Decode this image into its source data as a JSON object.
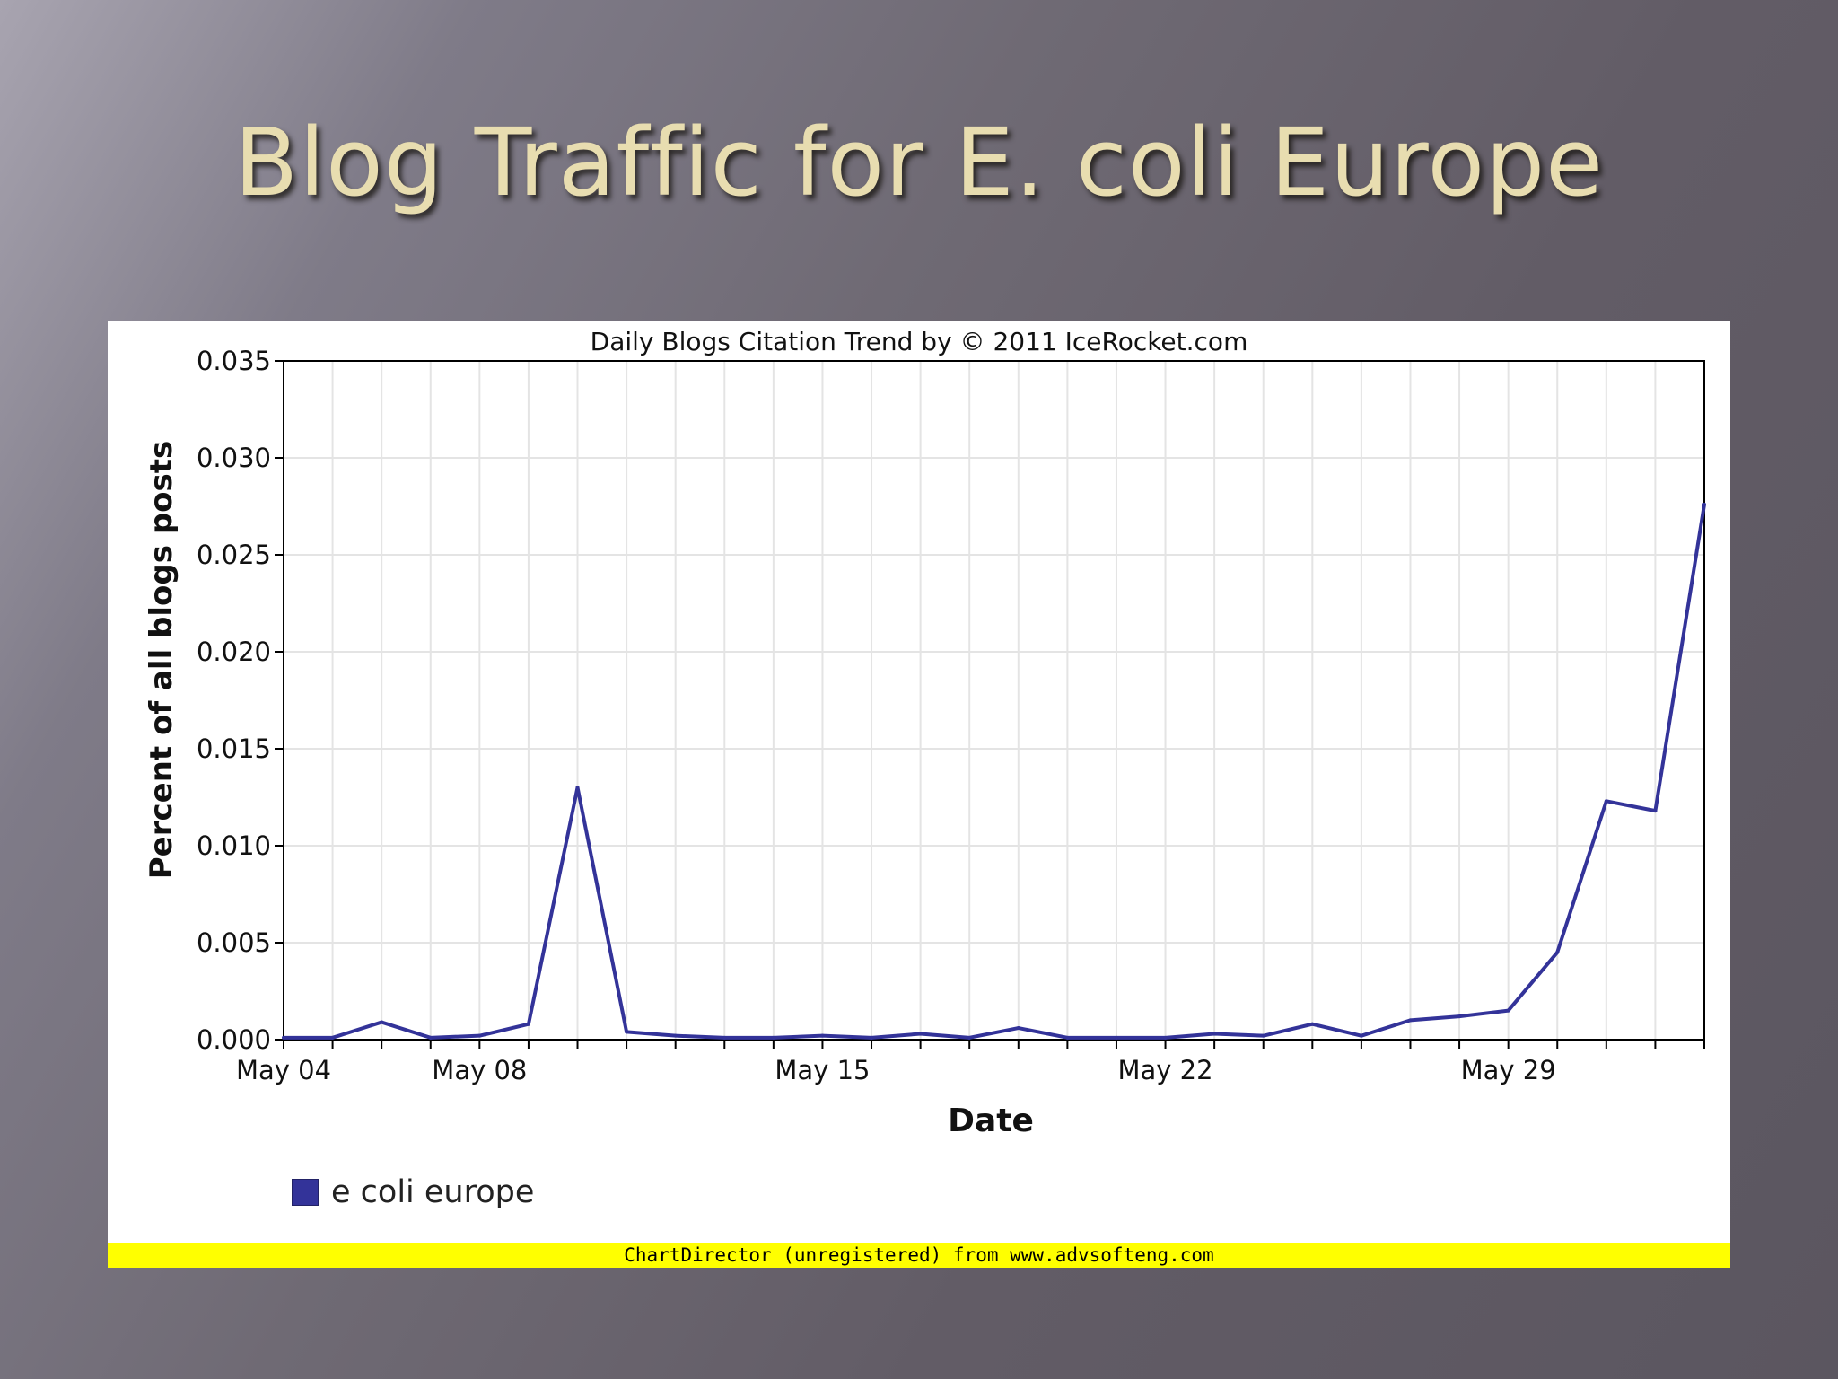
{
  "slide": {
    "title": "Blog Traffic for E. coli Europe"
  },
  "footer": {
    "text": "ChartDirector (unregistered) from www.advsofteng.com"
  },
  "chart_data": {
    "type": "line",
    "title": "Daily Blogs Citation Trend by © 2011 IceRocket.com",
    "xlabel": "Date",
    "ylabel": "Percent of all blogs posts",
    "x_tick_labels": [
      {
        "label": "May 04",
        "day": 4
      },
      {
        "label": "May 08",
        "day": 8
      },
      {
        "label": "May 15",
        "day": 15
      },
      {
        "label": "May 22",
        "day": 22
      },
      {
        "label": "May 29",
        "day": 29
      }
    ],
    "x_domain_days": [
      4,
      33
    ],
    "ylim": [
      0,
      0.035
    ],
    "y_ticks": [
      "0.000",
      "0.005",
      "0.010",
      "0.015",
      "0.020",
      "0.025",
      "0.030",
      "0.035"
    ],
    "grid": true,
    "legend_position": "bottom-left",
    "series": [
      {
        "name": "e coli europe",
        "color": "#333399",
        "days": [
          4,
          5,
          6,
          7,
          8,
          9,
          10,
          11,
          12,
          13,
          14,
          15,
          16,
          17,
          18,
          19,
          20,
          21,
          22,
          23,
          24,
          25,
          26,
          27,
          28,
          29,
          30,
          31,
          32,
          33
        ],
        "values": [
          0.0001,
          0.0001,
          0.0009,
          0.0001,
          0.0002,
          0.0008,
          0.013,
          0.0004,
          0.0002,
          0.0001,
          0.0001,
          0.0002,
          0.0001,
          0.0003,
          0.0001,
          0.0006,
          0.0001,
          0.0001,
          0.0001,
          0.0003,
          0.0002,
          0.0008,
          0.0002,
          0.001,
          0.0012,
          0.0015,
          0.0045,
          0.0123,
          0.0118,
          0.0276
        ]
      }
    ]
  }
}
